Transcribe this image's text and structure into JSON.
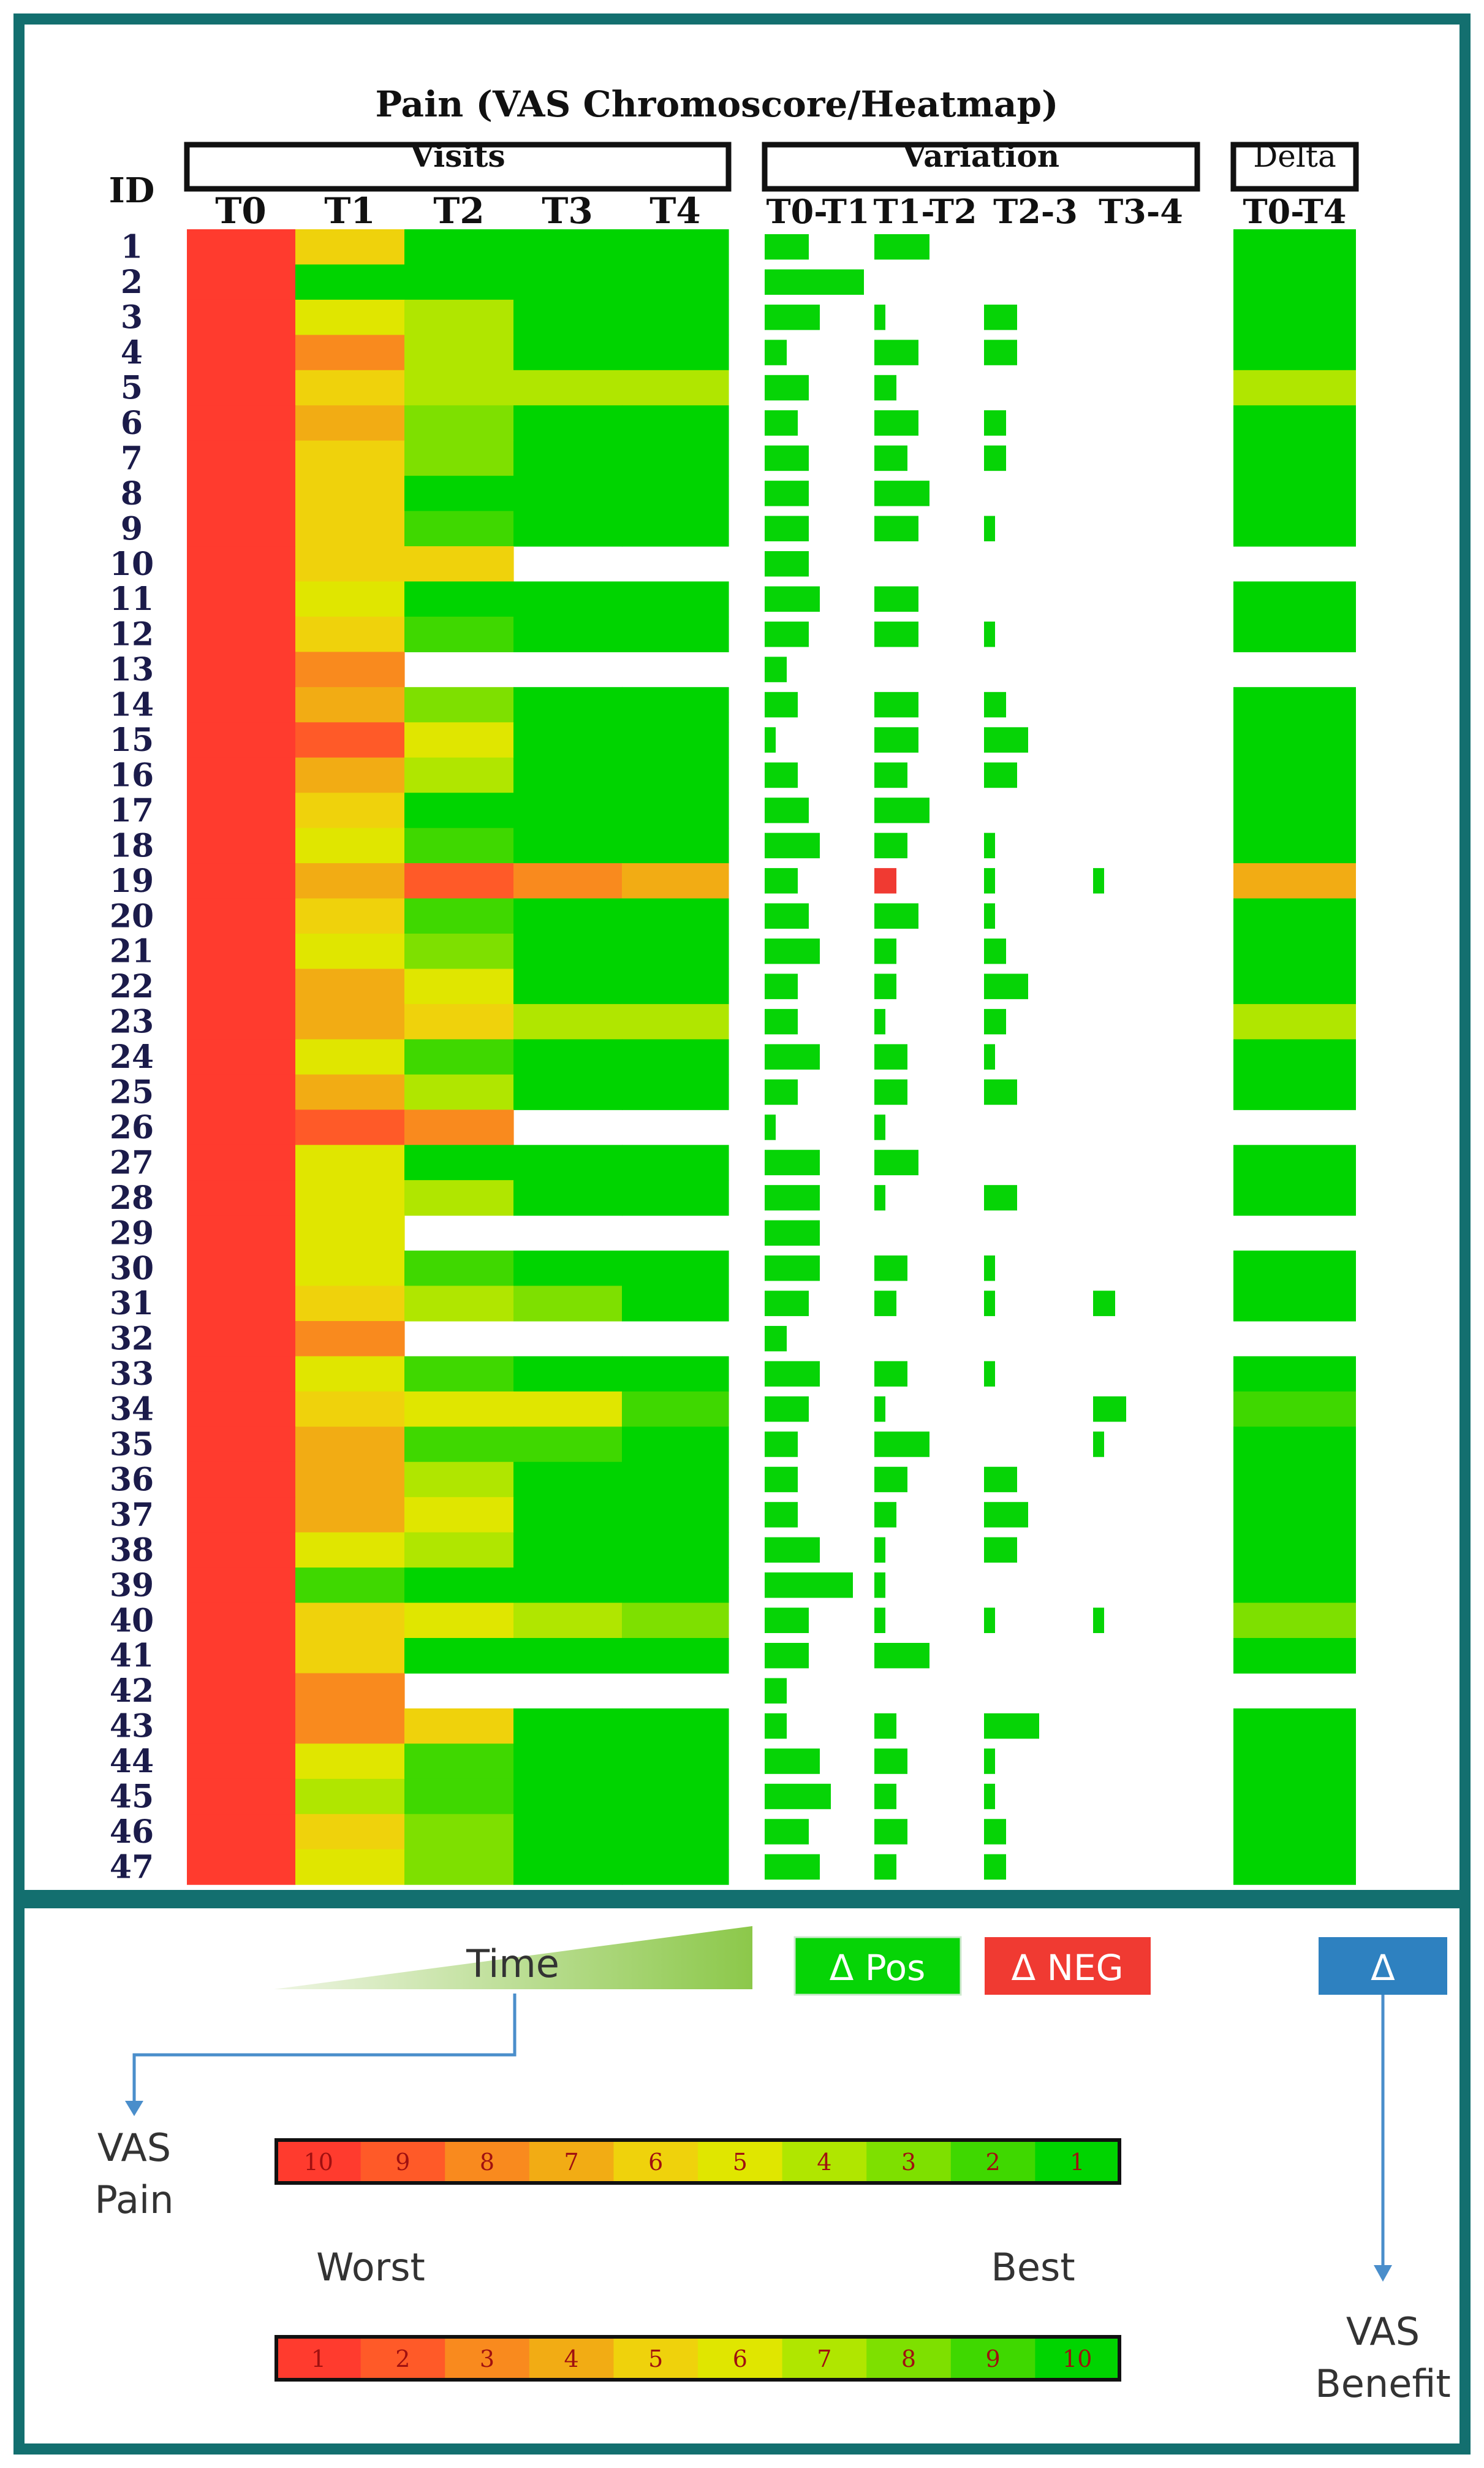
{
  "chart_data": {
    "type": "heatmap",
    "title": "Pain (VAS Chromoscore/Heatmap)",
    "id_label": "ID",
    "groups": {
      "visits": "Visits",
      "variation": "Variation",
      "delta": "Delta"
    },
    "visit_columns": [
      "T0",
      "T1",
      "T2",
      "T3",
      "T4"
    ],
    "variation_columns": [
      "T0-T1",
      "T1-T2",
      "T2-3",
      "T3-4"
    ],
    "delta_column": "T0-T4",
    "vas_max": 10,
    "colors": {
      "vas_scale": [
        "#ff3b2e",
        "#ff5a28",
        "#f98a1e",
        "#f2ac14",
        "#efd20c",
        "#e0e600",
        "#b0e600",
        "#7ee000",
        "#3fd800",
        "#00d400"
      ],
      "delta_pos": "#06d406",
      "delta_neg": "#f03a32",
      "benefit": "#2e81c0",
      "frame": "#136f6f"
    },
    "rows": [
      {
        "id": 1,
        "vas": [
          10,
          6,
          1,
          1,
          1
        ]
      },
      {
        "id": 2,
        "vas": [
          10,
          1,
          1,
          1,
          1
        ]
      },
      {
        "id": 3,
        "vas": [
          10,
          5,
          4,
          1,
          1
        ]
      },
      {
        "id": 4,
        "vas": [
          10,
          8,
          4,
          1,
          1
        ]
      },
      {
        "id": 5,
        "vas": [
          10,
          6,
          4,
          4,
          4
        ]
      },
      {
        "id": 6,
        "vas": [
          10,
          7,
          3,
          1,
          1
        ]
      },
      {
        "id": 7,
        "vas": [
          10,
          6,
          3,
          1,
          1
        ]
      },
      {
        "id": 8,
        "vas": [
          10,
          6,
          1,
          1,
          1
        ]
      },
      {
        "id": 9,
        "vas": [
          10,
          6,
          2,
          1,
          1
        ]
      },
      {
        "id": 10,
        "vas": [
          10,
          6,
          6,
          null,
          null
        ]
      },
      {
        "id": 11,
        "vas": [
          10,
          5,
          1,
          1,
          1
        ]
      },
      {
        "id": 12,
        "vas": [
          10,
          6,
          2,
          1,
          1
        ]
      },
      {
        "id": 13,
        "vas": [
          10,
          8,
          null,
          null,
          null
        ]
      },
      {
        "id": 14,
        "vas": [
          10,
          7,
          3,
          1,
          1
        ]
      },
      {
        "id": 15,
        "vas": [
          10,
          9,
          5,
          1,
          1
        ]
      },
      {
        "id": 16,
        "vas": [
          10,
          7,
          4,
          1,
          1
        ]
      },
      {
        "id": 17,
        "vas": [
          10,
          6,
          1,
          1,
          1
        ]
      },
      {
        "id": 18,
        "vas": [
          10,
          5,
          2,
          1,
          1
        ]
      },
      {
        "id": 19,
        "vas": [
          10,
          7,
          9,
          8,
          7
        ]
      },
      {
        "id": 20,
        "vas": [
          10,
          6,
          2,
          1,
          1
        ]
      },
      {
        "id": 21,
        "vas": [
          10,
          5,
          3,
          1,
          1
        ]
      },
      {
        "id": 22,
        "vas": [
          10,
          7,
          5,
          1,
          1
        ]
      },
      {
        "id": 23,
        "vas": [
          10,
          7,
          6,
          4,
          4
        ]
      },
      {
        "id": 24,
        "vas": [
          10,
          5,
          2,
          1,
          1
        ]
      },
      {
        "id": 25,
        "vas": [
          10,
          7,
          4,
          1,
          1
        ]
      },
      {
        "id": 26,
        "vas": [
          10,
          9,
          8,
          null,
          null
        ]
      },
      {
        "id": 27,
        "vas": [
          10,
          5,
          1,
          1,
          1
        ]
      },
      {
        "id": 28,
        "vas": [
          10,
          5,
          4,
          1,
          1
        ]
      },
      {
        "id": 29,
        "vas": [
          10,
          5,
          null,
          null,
          null
        ]
      },
      {
        "id": 30,
        "vas": [
          10,
          5,
          2,
          1,
          1
        ]
      },
      {
        "id": 31,
        "vas": [
          10,
          6,
          4,
          3,
          1
        ]
      },
      {
        "id": 32,
        "vas": [
          10,
          8,
          null,
          null,
          null
        ]
      },
      {
        "id": 33,
        "vas": [
          10,
          5,
          2,
          1,
          1
        ]
      },
      {
        "id": 34,
        "vas": [
          10,
          6,
          5,
          5,
          2
        ]
      },
      {
        "id": 35,
        "vas": [
          10,
          7,
          2,
          2,
          1
        ]
      },
      {
        "id": 36,
        "vas": [
          10,
          7,
          4,
          1,
          1
        ]
      },
      {
        "id": 37,
        "vas": [
          10,
          7,
          5,
          1,
          1
        ]
      },
      {
        "id": 38,
        "vas": [
          10,
          5,
          4,
          1,
          1
        ]
      },
      {
        "id": 39,
        "vas": [
          10,
          2,
          1,
          1,
          1
        ]
      },
      {
        "id": 40,
        "vas": [
          10,
          6,
          5,
          4,
          3
        ]
      },
      {
        "id": 41,
        "vas": [
          10,
          6,
          1,
          1,
          1
        ]
      },
      {
        "id": 42,
        "vas": [
          10,
          8,
          null,
          null,
          null
        ]
      },
      {
        "id": 43,
        "vas": [
          10,
          8,
          6,
          1,
          1
        ]
      },
      {
        "id": 44,
        "vas": [
          10,
          5,
          2,
          1,
          1
        ]
      },
      {
        "id": 45,
        "vas": [
          10,
          4,
          2,
          1,
          1
        ]
      },
      {
        "id": 46,
        "vas": [
          10,
          6,
          3,
          1,
          1
        ]
      },
      {
        "id": 47,
        "vas": [
          10,
          5,
          3,
          1,
          1
        ]
      }
    ]
  },
  "legend": {
    "time_label": "Time",
    "pos_label": "Δ Pos",
    "neg_label": "Δ NEG",
    "delta_label": "Δ",
    "vas_pain_label": [
      "VAS",
      "Pain"
    ],
    "vas_benefit_label": [
      "VAS",
      "Benefit"
    ],
    "worst_label": "Worst",
    "best_label": "Best",
    "pain_scale": [
      "10",
      "9",
      "8",
      "7",
      "6",
      "5",
      "4",
      "3",
      "2",
      "1"
    ],
    "benefit_scale": [
      "1",
      "2",
      "3",
      "4",
      "5",
      "6",
      "7",
      "8",
      "9",
      "10"
    ]
  }
}
